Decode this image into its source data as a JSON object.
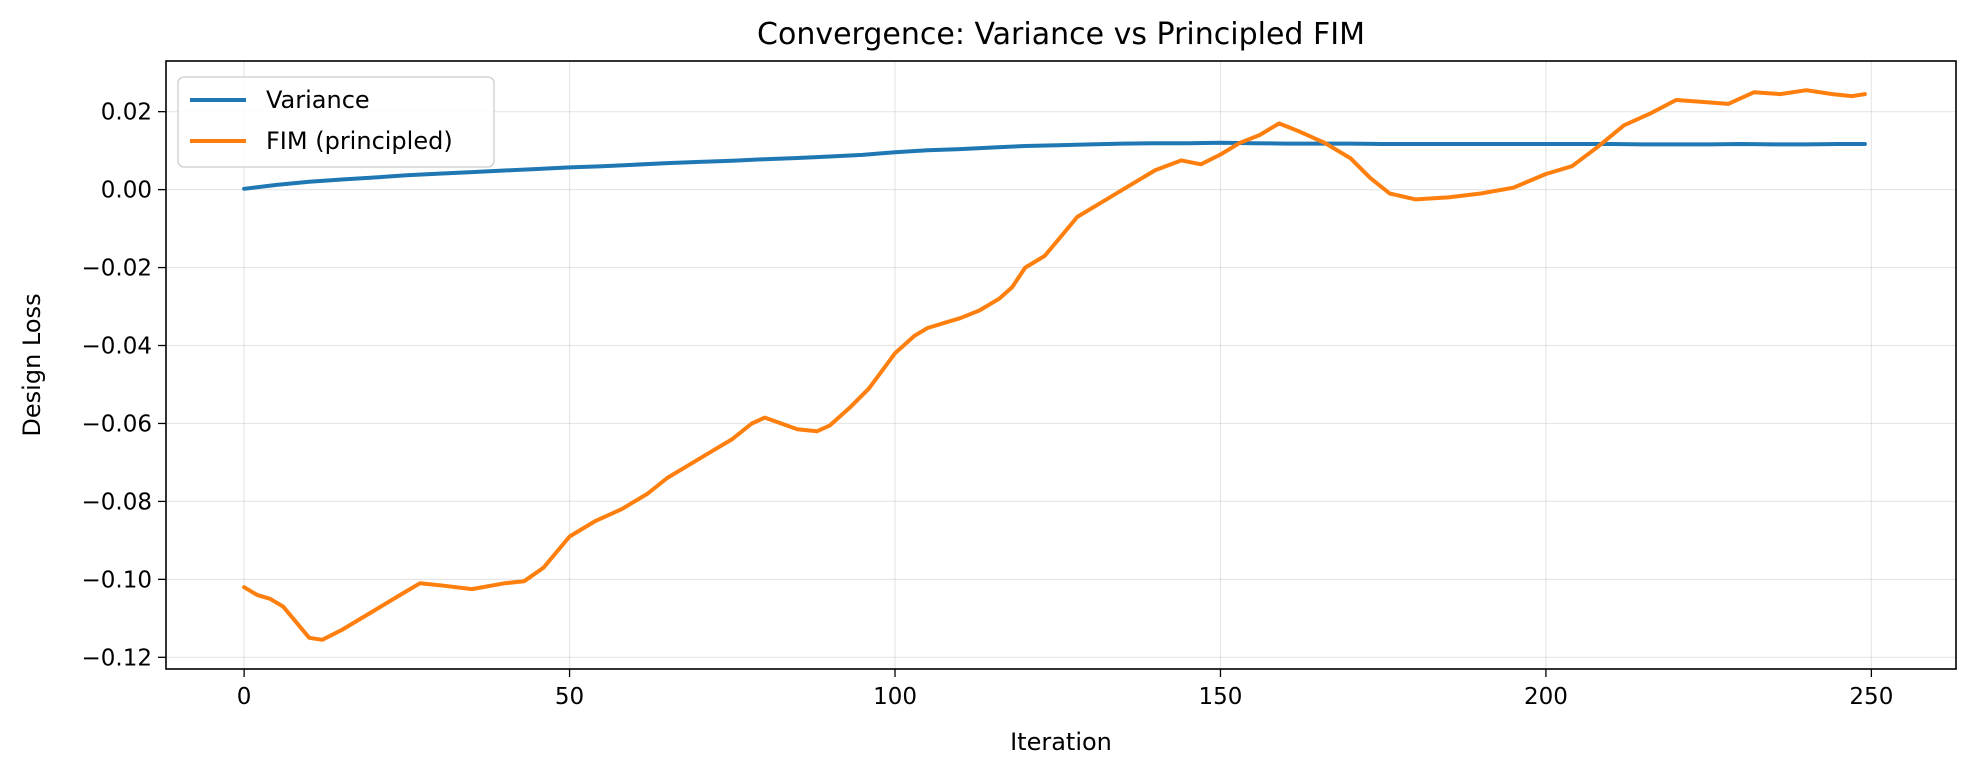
{
  "chart_data": {
    "type": "line",
    "title": "Convergence: Variance vs Principled FIM",
    "xlabel": "Iteration",
    "ylabel": "Design Loss",
    "xlim": [
      -12,
      263
    ],
    "ylim": [
      -0.123,
      0.033
    ],
    "xticks": [
      0,
      50,
      100,
      150,
      200,
      250
    ],
    "xtick_labels": [
      "0",
      "50",
      "100",
      "150",
      "200",
      "250"
    ],
    "yticks": [
      -0.12,
      -0.1,
      -0.08,
      -0.06,
      -0.04,
      -0.02,
      0.0,
      0.02
    ],
    "ytick_labels": [
      "−0.12",
      "−0.10",
      "−0.08",
      "−0.06",
      "−0.04",
      "−0.02",
      "0.00",
      "0.02"
    ],
    "grid": true,
    "legend_position": "top-left",
    "series": [
      {
        "name": "Variance",
        "color": "#1f77b4",
        "x": [
          0,
          5,
          10,
          15,
          20,
          25,
          30,
          35,
          40,
          45,
          50,
          55,
          60,
          65,
          70,
          75,
          80,
          85,
          90,
          95,
          100,
          105,
          110,
          115,
          120,
          125,
          130,
          135,
          140,
          145,
          150,
          155,
          160,
          165,
          170,
          175,
          180,
          185,
          190,
          195,
          200,
          205,
          210,
          215,
          220,
          225,
          230,
          235,
          240,
          245,
          249
        ],
        "values": [
          0.0002,
          0.0012,
          0.002,
          0.0026,
          0.0031,
          0.0037,
          0.0041,
          0.0045,
          0.0049,
          0.0053,
          0.0057,
          0.006,
          0.0064,
          0.0068,
          0.0071,
          0.0074,
          0.0078,
          0.0081,
          0.0085,
          0.0089,
          0.0096,
          0.0101,
          0.0104,
          0.0108,
          0.0112,
          0.0114,
          0.0116,
          0.0118,
          0.0119,
          0.0119,
          0.012,
          0.0119,
          0.0118,
          0.0118,
          0.0118,
          0.0117,
          0.0117,
          0.0117,
          0.0117,
          0.0117,
          0.0117,
          0.0117,
          0.0117,
          0.0116,
          0.0116,
          0.0116,
          0.0117,
          0.0116,
          0.0116,
          0.0117,
          0.0117
        ]
      },
      {
        "name": "FIM (principled)",
        "color": "#ff7f0e",
        "x": [
          0,
          2,
          4,
          6,
          8,
          10,
          12,
          15,
          20,
          24,
          27,
          30,
          35,
          40,
          43,
          46,
          50,
          54,
          58,
          62,
          65,
          68,
          72,
          75,
          78,
          80,
          85,
          88,
          90,
          93,
          96,
          100,
          103,
          105,
          108,
          110,
          113,
          116,
          118,
          120,
          123,
          126,
          128,
          132,
          136,
          140,
          144,
          147,
          150,
          153,
          156,
          159,
          162,
          166,
          170,
          173,
          176,
          180,
          185,
          190,
          195,
          200,
          204,
          208,
          212,
          216,
          220,
          224,
          228,
          232,
          236,
          240,
          244,
          247,
          249
        ],
        "values": [
          -0.102,
          -0.104,
          -0.105,
          -0.107,
          -0.111,
          -0.115,
          -0.1155,
          -0.113,
          -0.108,
          -0.104,
          -0.101,
          -0.1015,
          -0.1025,
          -0.101,
          -0.1005,
          -0.097,
          -0.089,
          -0.085,
          -0.082,
          -0.078,
          -0.074,
          -0.071,
          -0.067,
          -0.064,
          -0.06,
          -0.0585,
          -0.0615,
          -0.062,
          -0.0605,
          -0.056,
          -0.051,
          -0.042,
          -0.0375,
          -0.0355,
          -0.034,
          -0.033,
          -0.031,
          -0.028,
          -0.025,
          -0.02,
          -0.017,
          -0.011,
          -0.007,
          -0.003,
          0.001,
          0.005,
          0.0075,
          0.0065,
          0.009,
          0.012,
          0.014,
          0.017,
          0.015,
          0.012,
          0.008,
          0.003,
          -0.001,
          -0.0025,
          -0.002,
          -0.001,
          0.0005,
          0.004,
          0.006,
          0.011,
          0.0165,
          0.0195,
          0.023,
          0.0225,
          0.022,
          0.025,
          0.0245,
          0.0255,
          0.0245,
          0.024,
          0.0245
        ]
      }
    ]
  }
}
